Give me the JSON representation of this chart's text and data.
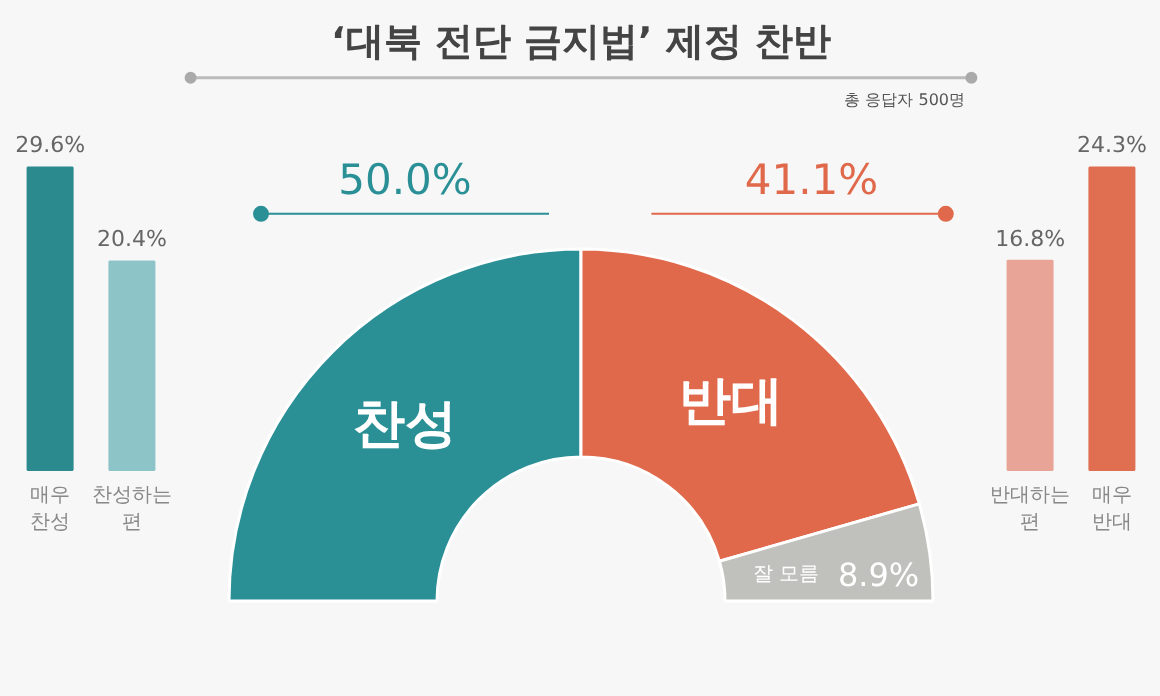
{
  "chart_data": [
    {
      "type": "bar",
      "categories": [
        "매우 찬성",
        "찬성하는 편"
      ],
      "values": [
        29.6,
        20.4
      ],
      "colors": [
        "#2a8a8e",
        "#8cc4c8"
      ],
      "value_labels": [
        "29.6%",
        "20.4%"
      ],
      "tick_labels": false,
      "grid": false
    },
    {
      "type": "donut",
      "title": "‘대북 전단 금지법’ 제정 찬반",
      "annotations": [
        "총 응답자 500명"
      ],
      "categories": [
        "찬성",
        "반대",
        "잘 모름"
      ],
      "values": [
        50.0,
        41.1,
        8.9
      ],
      "colors": [
        "#2a9096",
        "#e0694c",
        "#c0c0bc"
      ],
      "value_labels": [
        "50.0%",
        "41.1%",
        "8.9%"
      ]
    },
    {
      "type": "bar",
      "categories": [
        "반대하는 편",
        "매우 반대"
      ],
      "values": [
        16.8,
        24.3
      ],
      "colors": [
        "#e8a496",
        "#e06e50"
      ],
      "value_labels": [
        "16.8%",
        "24.3%"
      ],
      "tick_labels": false,
      "grid": false
    }
  ]
}
